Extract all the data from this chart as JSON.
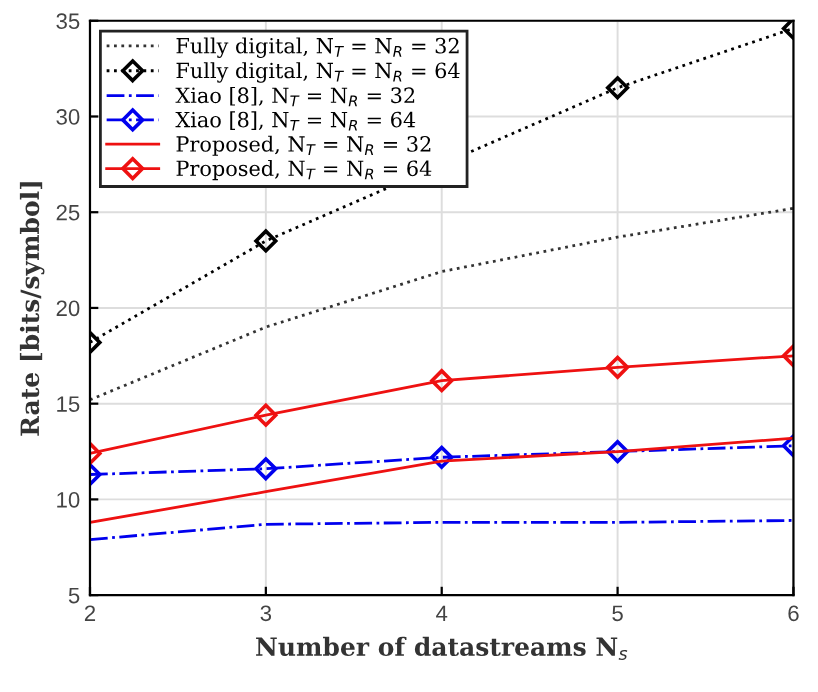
{
  "chart_data": {
    "type": "line",
    "xlabel": "Number of datastreams N$_{s}$",
    "ylabel": "Rate [bits/symbol]",
    "x": [
      2,
      3,
      4,
      5,
      6
    ],
    "xlim": [
      2,
      6
    ],
    "xticks": [
      2,
      3,
      4,
      5,
      6
    ],
    "ylim": [
      5,
      35
    ],
    "yticks": [
      5,
      10,
      15,
      20,
      25,
      30,
      35
    ],
    "grid": true,
    "legend": "top left",
    "series": [
      {
        "name": "Fully digital, N$_{T}$ = N$_{R}$ = 32",
        "color": "#333333",
        "line_style": "dotted",
        "marker": "none",
        "values": [
          15.2,
          19.0,
          21.9,
          23.7,
          25.2
        ]
      },
      {
        "name": "Fully digital, N$_{T}$ = N$_{R}$ = 64",
        "color": "#000000",
        "line_style": "dotted",
        "marker": "diamond",
        "values": [
          18.2,
          23.5,
          null,
          31.5,
          34.6
        ]
      },
      {
        "name": "Xiao [8], N$_{T}$ = N$_{R}$ = 32",
        "color": "#0000ee",
        "line_style": "dashdot",
        "marker": "none",
        "values": [
          7.9,
          8.7,
          8.8,
          8.8,
          8.9
        ]
      },
      {
        "name": "Xiao [8], N$_{T}$ = N$_{R}$ = 64",
        "color": "#0000ee",
        "line_style": "dashdot",
        "marker": "diamond",
        "values": [
          11.3,
          11.6,
          12.2,
          12.5,
          12.8
        ]
      },
      {
        "name": "Proposed, N$_{T}$ = N$_{R}$ = 32",
        "color": "#ee1111",
        "line_style": "solid",
        "marker": "none",
        "values": [
          8.8,
          10.4,
          12.0,
          12.5,
          13.2
        ]
      },
      {
        "name": "Proposed, N$_{T}$ = N$_{R}$ = 64",
        "color": "#ee1111",
        "line_style": "solid",
        "marker": "diamond",
        "values": [
          12.4,
          14.4,
          16.2,
          16.9,
          17.5
        ]
      }
    ]
  }
}
